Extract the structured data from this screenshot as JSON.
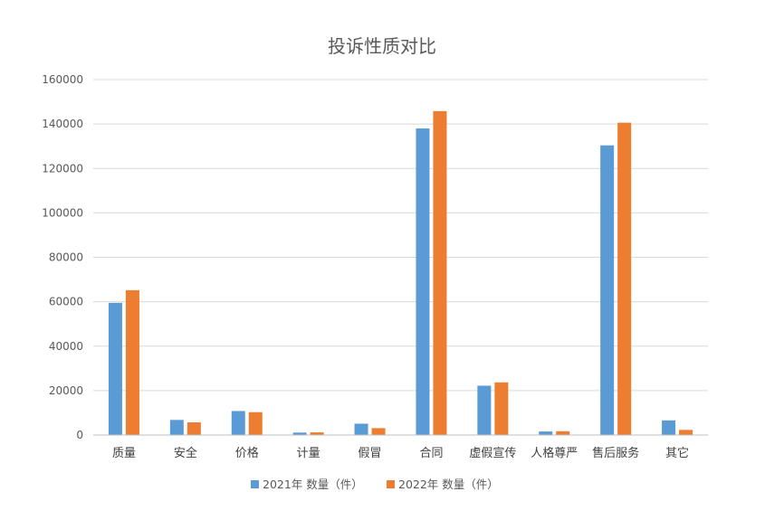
{
  "chart_data": {
    "type": "bar",
    "title": "投诉性质对比",
    "xlabel": "",
    "ylabel": "",
    "ylim": [
      0,
      160000
    ],
    "yticks": [
      "0",
      "20000",
      "40000",
      "60000",
      "80000",
      "100000",
      "120000",
      "140000",
      "160000"
    ],
    "grid": true,
    "legend_position": "bottom",
    "categories": [
      "质量",
      "安全",
      "价格",
      "计量",
      "假冒",
      "合同",
      "虚假宣传",
      "人格尊严",
      "售后服务",
      "其它"
    ],
    "series": [
      {
        "name": "2021年 数量（件）",
        "color": "#5b9bd5",
        "values": [
          59500,
          6800,
          10800,
          1100,
          5100,
          138000,
          22200,
          1600,
          130400,
          6600
        ]
      },
      {
        "name": "2022年 数量（件）",
        "color": "#ed7d31",
        "values": [
          65200,
          5700,
          10300,
          1200,
          3100,
          145800,
          23700,
          1700,
          140600,
          2300
        ]
      }
    ]
  }
}
